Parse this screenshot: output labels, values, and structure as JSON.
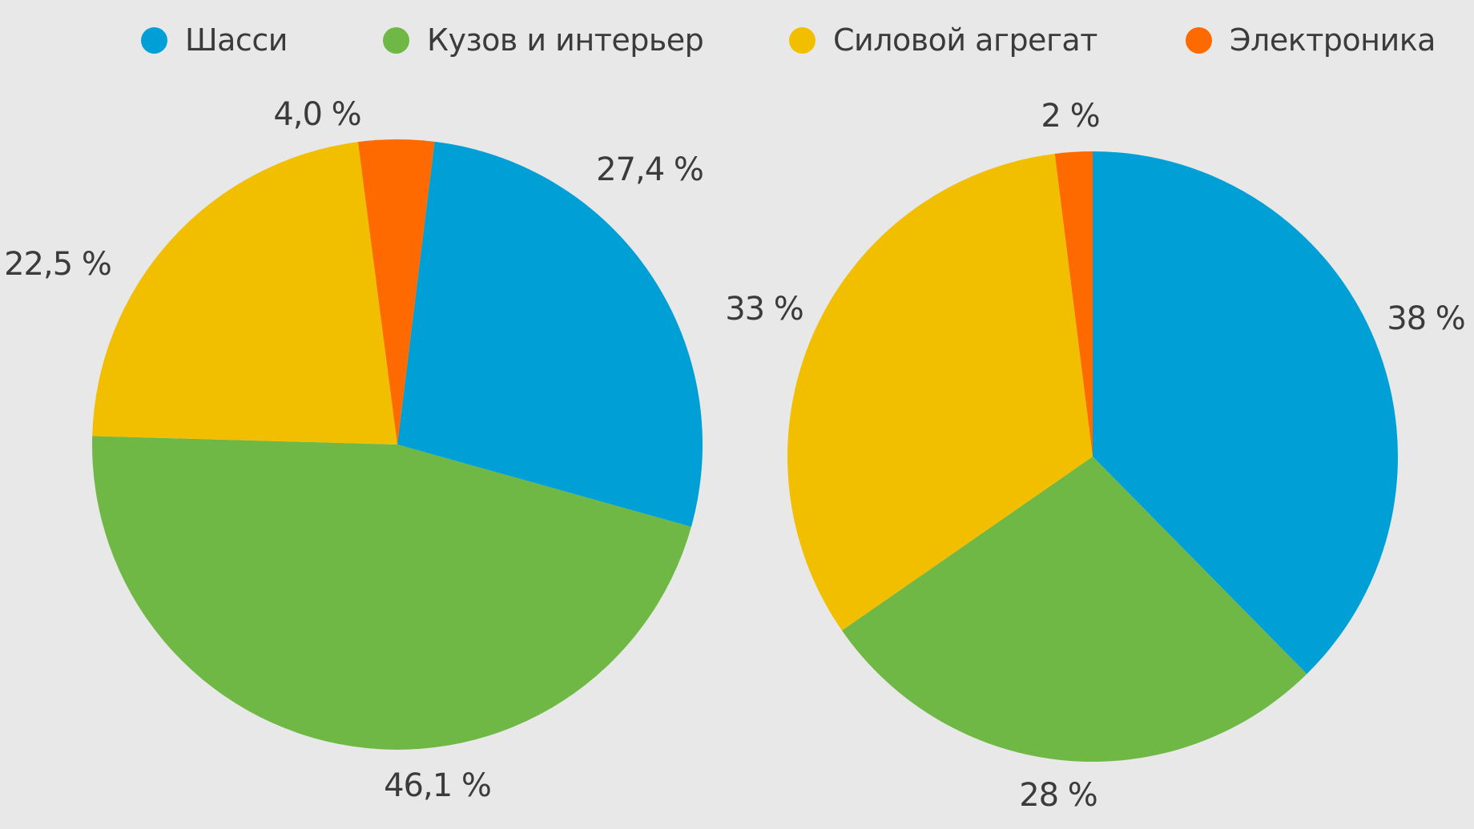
{
  "chart_data": [
    {
      "type": "pie",
      "categories": [
        "Шасси",
        "Кузов и интерьер",
        "Силовой агрегат",
        "Электроника"
      ],
      "values": [
        27.4,
        46.1,
        22.5,
        4.0
      ],
      "labels": [
        "27,4 %",
        "46,1 %",
        "22,5 %",
        "4,0 %"
      ],
      "colors": [
        "#00a0d6",
        "#6fb846",
        "#f2bf00",
        "#ff6a00"
      ],
      "start_angle_deg": 7,
      "direction": "clockwise"
    },
    {
      "type": "pie",
      "categories": [
        "Шасси",
        "Кузов и интерьер",
        "Силовой агрегат",
        "Электроника"
      ],
      "values": [
        38,
        28,
        33,
        2
      ],
      "labels": [
        "38 %",
        "28 %",
        "33 %",
        "2 %"
      ],
      "colors": [
        "#00a0d6",
        "#6fb846",
        "#f2bf00",
        "#ff6a00"
      ],
      "start_angle_deg": 0,
      "direction": "clockwise"
    }
  ],
  "legend": {
    "placement": "top",
    "items": [
      {
        "label": "Шасси",
        "color": "#00a0d6"
      },
      {
        "label": "Кузов и интерьер",
        "color": "#6fb846"
      },
      {
        "label": "Силовой агрегат",
        "color": "#f2bf00"
      },
      {
        "label": "Электроника",
        "color": "#ff6a00"
      }
    ]
  }
}
